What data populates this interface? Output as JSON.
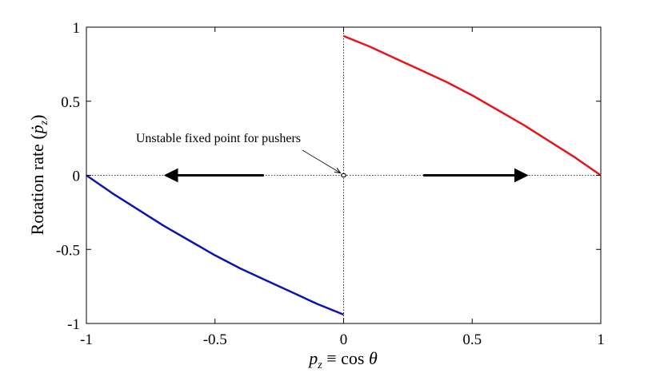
{
  "chart_data": {
    "type": "line",
    "xlabel": "p_z ≡ cos θ",
    "ylabel": "Rotation rate (ṗ_z)",
    "xlim": [
      -1,
      1
    ],
    "ylim": [
      -1,
      1
    ],
    "xticks": [
      -1,
      -0.5,
      0,
      0.5,
      1
    ],
    "xtick_labels": [
      "-1",
      "-0.5",
      "0",
      "0.5",
      "1"
    ],
    "yticks": [
      -1,
      -0.5,
      0,
      0.5,
      1
    ],
    "ytick_labels": [
      "-1",
      "-0.5",
      "0",
      "0.5",
      "1"
    ],
    "grid": false,
    "colors": {
      "blue": "#0a14b4",
      "red": "#e8141a"
    },
    "series": [
      {
        "color": "#0a14b4",
        "x": [
          -1,
          -0.9,
          -0.8,
          -0.7,
          -0.6,
          -0.5,
          -0.4,
          -0.3,
          -0.2,
          -0.1,
          0
        ],
        "y": [
          0,
          -0.12,
          -0.23,
          -0.34,
          -0.44,
          -0.54,
          -0.63,
          -0.71,
          -0.79,
          -0.87,
          -0.94
        ]
      },
      {
        "color": "#e8141a",
        "x": [
          0,
          0.1,
          0.2,
          0.3,
          0.4,
          0.5,
          0.6,
          0.7,
          0.8,
          0.9,
          1
        ],
        "y": [
          0.94,
          0.87,
          0.79,
          0.71,
          0.63,
          0.54,
          0.44,
          0.34,
          0.23,
          0.12,
          0
        ]
      }
    ],
    "arrows": [
      {
        "from": [
          -0.31,
          0
        ],
        "to": [
          -0.69,
          0
        ]
      },
      {
        "from": [
          0.31,
          0
        ],
        "to": [
          0.71,
          0
        ]
      }
    ],
    "reference_lines": {
      "horizontal_y": 0,
      "vertical_x": 0,
      "style": "dotted"
    },
    "fixed_point": {
      "x": 0,
      "y": 0,
      "marker": "open-circle"
    },
    "annotations": [
      {
        "text": "Unstable fixed point for pushers",
        "points_to": [
          0,
          0
        ]
      }
    ]
  }
}
